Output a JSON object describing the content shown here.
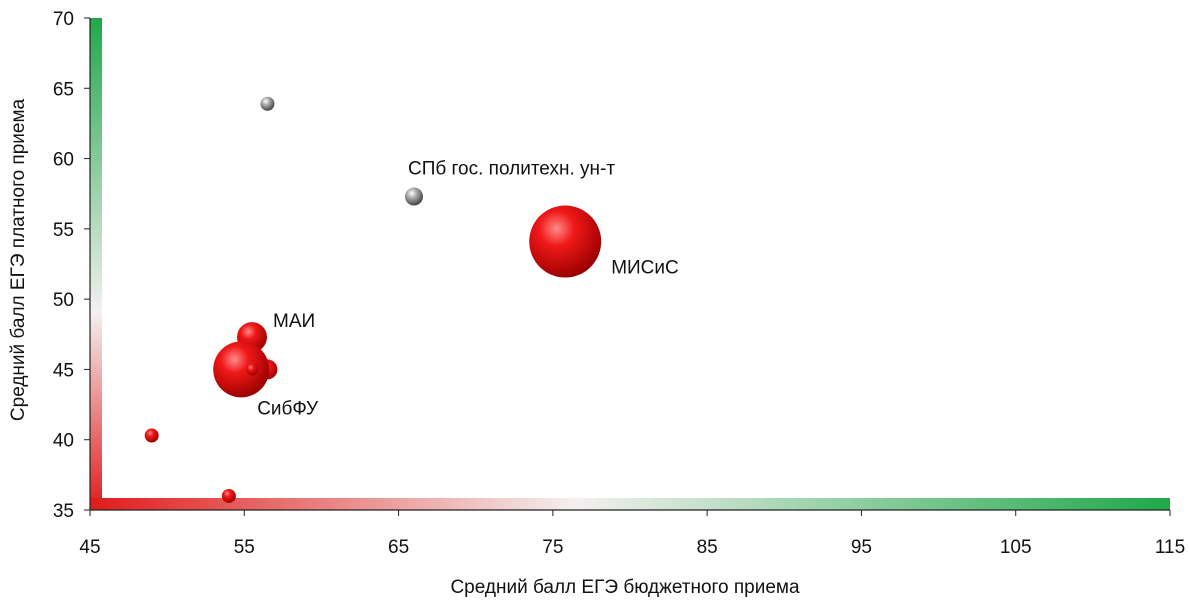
{
  "chart_data": {
    "type": "bubble",
    "xlabel": "Средний балл ЕГЭ бюджетного приема",
    "ylabel": "Средний балл ЕГЭ платного приема",
    "xlim": [
      45,
      115
    ],
    "ylim": [
      35,
      70
    ],
    "xticks": [
      45,
      55,
      65,
      75,
      85,
      95,
      105,
      115
    ],
    "yticks": [
      35,
      40,
      45,
      50,
      55,
      60,
      65,
      70
    ],
    "grid": false,
    "axis_colors": {
      "low": "#e01b1b",
      "mid": "#ffffff",
      "high": "#1fa84a"
    },
    "colors": {
      "red": "#e01010",
      "gray": "#8a8a8a"
    },
    "points": [
      {
        "x": 56.5,
        "y": 63.9,
        "size": 7,
        "color": "gray",
        "label": ""
      },
      {
        "x": 66.0,
        "y": 57.3,
        "size": 9,
        "color": "gray",
        "label": "СПб гос. политехн. ун-т"
      },
      {
        "x": 75.8,
        "y": 54.1,
        "size": 36,
        "color": "red",
        "label": "МИСиС"
      },
      {
        "x": 55.5,
        "y": 47.3,
        "size": 15,
        "color": "red",
        "label": "МАИ"
      },
      {
        "x": 56.5,
        "y": 45.0,
        "size": 10,
        "color": "red",
        "label": ""
      },
      {
        "x": 54.8,
        "y": 45.0,
        "size": 28,
        "color": "red",
        "label": "СибФУ"
      },
      {
        "x": 55.5,
        "y": 45.0,
        "size": 6,
        "color": "red",
        "label": ""
      },
      {
        "x": 49.0,
        "y": 40.3,
        "size": 7,
        "color": "red",
        "label": ""
      },
      {
        "x": 54.0,
        "y": 36.0,
        "size": 7,
        "color": "red",
        "label": ""
      }
    ]
  }
}
